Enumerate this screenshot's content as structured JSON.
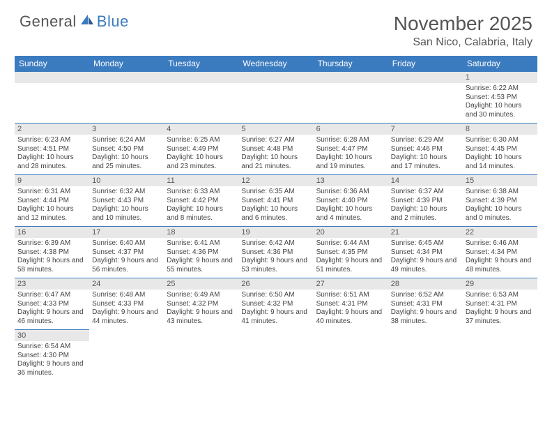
{
  "logo": {
    "text1": "General",
    "text2": "Blue"
  },
  "title": "November 2025",
  "location": "San Nico, Calabria, Italy",
  "header_bg": "#3b7bbf",
  "header_fg": "#ffffff",
  "daynum_bg": "#e8e8e8",
  "border_color": "#3b7bbf",
  "text_color": "#444444",
  "title_color": "#555555",
  "dayHeaders": [
    "Sunday",
    "Monday",
    "Tuesday",
    "Wednesday",
    "Thursday",
    "Friday",
    "Saturday"
  ],
  "weeks": [
    [
      null,
      null,
      null,
      null,
      null,
      null,
      {
        "n": "1",
        "sunrise": "6:22 AM",
        "sunset": "4:53 PM",
        "daylight": "10 hours and 30 minutes."
      }
    ],
    [
      {
        "n": "2",
        "sunrise": "6:23 AM",
        "sunset": "4:51 PM",
        "daylight": "10 hours and 28 minutes."
      },
      {
        "n": "3",
        "sunrise": "6:24 AM",
        "sunset": "4:50 PM",
        "daylight": "10 hours and 25 minutes."
      },
      {
        "n": "4",
        "sunrise": "6:25 AM",
        "sunset": "4:49 PM",
        "daylight": "10 hours and 23 minutes."
      },
      {
        "n": "5",
        "sunrise": "6:27 AM",
        "sunset": "4:48 PM",
        "daylight": "10 hours and 21 minutes."
      },
      {
        "n": "6",
        "sunrise": "6:28 AM",
        "sunset": "4:47 PM",
        "daylight": "10 hours and 19 minutes."
      },
      {
        "n": "7",
        "sunrise": "6:29 AM",
        "sunset": "4:46 PM",
        "daylight": "10 hours and 17 minutes."
      },
      {
        "n": "8",
        "sunrise": "6:30 AM",
        "sunset": "4:45 PM",
        "daylight": "10 hours and 14 minutes."
      }
    ],
    [
      {
        "n": "9",
        "sunrise": "6:31 AM",
        "sunset": "4:44 PM",
        "daylight": "10 hours and 12 minutes."
      },
      {
        "n": "10",
        "sunrise": "6:32 AM",
        "sunset": "4:43 PM",
        "daylight": "10 hours and 10 minutes."
      },
      {
        "n": "11",
        "sunrise": "6:33 AM",
        "sunset": "4:42 PM",
        "daylight": "10 hours and 8 minutes."
      },
      {
        "n": "12",
        "sunrise": "6:35 AM",
        "sunset": "4:41 PM",
        "daylight": "10 hours and 6 minutes."
      },
      {
        "n": "13",
        "sunrise": "6:36 AM",
        "sunset": "4:40 PM",
        "daylight": "10 hours and 4 minutes."
      },
      {
        "n": "14",
        "sunrise": "6:37 AM",
        "sunset": "4:39 PM",
        "daylight": "10 hours and 2 minutes."
      },
      {
        "n": "15",
        "sunrise": "6:38 AM",
        "sunset": "4:39 PM",
        "daylight": "10 hours and 0 minutes."
      }
    ],
    [
      {
        "n": "16",
        "sunrise": "6:39 AM",
        "sunset": "4:38 PM",
        "daylight": "9 hours and 58 minutes."
      },
      {
        "n": "17",
        "sunrise": "6:40 AM",
        "sunset": "4:37 PM",
        "daylight": "9 hours and 56 minutes."
      },
      {
        "n": "18",
        "sunrise": "6:41 AM",
        "sunset": "4:36 PM",
        "daylight": "9 hours and 55 minutes."
      },
      {
        "n": "19",
        "sunrise": "6:42 AM",
        "sunset": "4:36 PM",
        "daylight": "9 hours and 53 minutes."
      },
      {
        "n": "20",
        "sunrise": "6:44 AM",
        "sunset": "4:35 PM",
        "daylight": "9 hours and 51 minutes."
      },
      {
        "n": "21",
        "sunrise": "6:45 AM",
        "sunset": "4:34 PM",
        "daylight": "9 hours and 49 minutes."
      },
      {
        "n": "22",
        "sunrise": "6:46 AM",
        "sunset": "4:34 PM",
        "daylight": "9 hours and 48 minutes."
      }
    ],
    [
      {
        "n": "23",
        "sunrise": "6:47 AM",
        "sunset": "4:33 PM",
        "daylight": "9 hours and 46 minutes."
      },
      {
        "n": "24",
        "sunrise": "6:48 AM",
        "sunset": "4:33 PM",
        "daylight": "9 hours and 44 minutes."
      },
      {
        "n": "25",
        "sunrise": "6:49 AM",
        "sunset": "4:32 PM",
        "daylight": "9 hours and 43 minutes."
      },
      {
        "n": "26",
        "sunrise": "6:50 AM",
        "sunset": "4:32 PM",
        "daylight": "9 hours and 41 minutes."
      },
      {
        "n": "27",
        "sunrise": "6:51 AM",
        "sunset": "4:31 PM",
        "daylight": "9 hours and 40 minutes."
      },
      {
        "n": "28",
        "sunrise": "6:52 AM",
        "sunset": "4:31 PM",
        "daylight": "9 hours and 38 minutes."
      },
      {
        "n": "29",
        "sunrise": "6:53 AM",
        "sunset": "4:31 PM",
        "daylight": "9 hours and 37 minutes."
      }
    ],
    [
      {
        "n": "30",
        "sunrise": "6:54 AM",
        "sunset": "4:30 PM",
        "daylight": "9 hours and 36 minutes."
      },
      null,
      null,
      null,
      null,
      null,
      null
    ]
  ]
}
